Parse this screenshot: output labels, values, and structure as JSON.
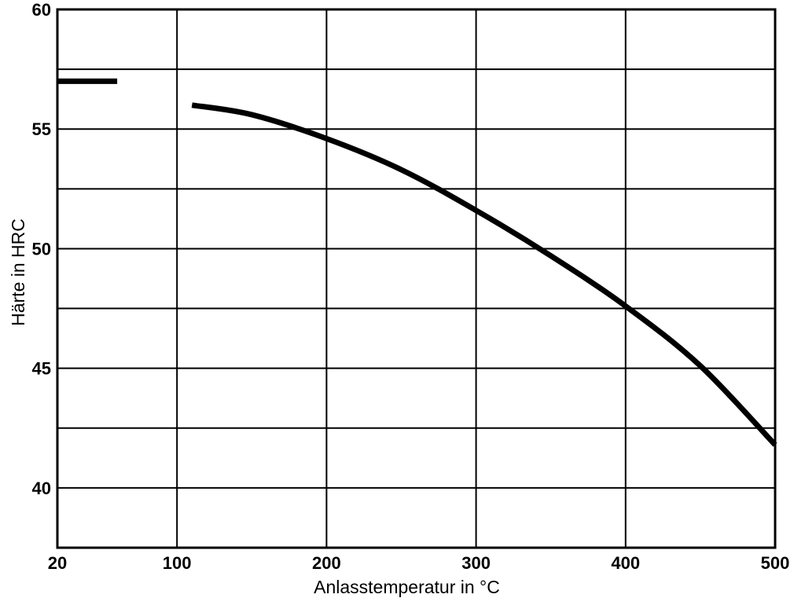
{
  "chart_data": {
    "type": "line",
    "title": "",
    "xlabel": "Anlasstemperatur in °C",
    "ylabel": "Härte in HRC",
    "xlim": [
      20,
      500
    ],
    "ylim": [
      37.5,
      60
    ],
    "x_ticks": [
      20,
      100,
      200,
      300,
      400,
      500
    ],
    "y_ticks": [
      40,
      45,
      50,
      55,
      60
    ],
    "grid": true,
    "grid_y_step": 2.5,
    "grid_color": "#000000",
    "line_color": "#000000",
    "series": [
      {
        "values": [
          {
            "x": 20,
            "y": 57.0
          },
          {
            "x": 60,
            "y": 57.0
          }
        ]
      },
      {
        "values": [
          {
            "x": 110,
            "y": 56.0
          },
          {
            "x": 150,
            "y": 55.6
          },
          {
            "x": 200,
            "y": 54.6
          },
          {
            "x": 250,
            "y": 53.3
          },
          {
            "x": 300,
            "y": 51.6
          },
          {
            "x": 350,
            "y": 49.7
          },
          {
            "x": 400,
            "y": 47.6
          },
          {
            "x": 450,
            "y": 45.1
          },
          {
            "x": 500,
            "y": 41.8
          }
        ]
      }
    ]
  }
}
